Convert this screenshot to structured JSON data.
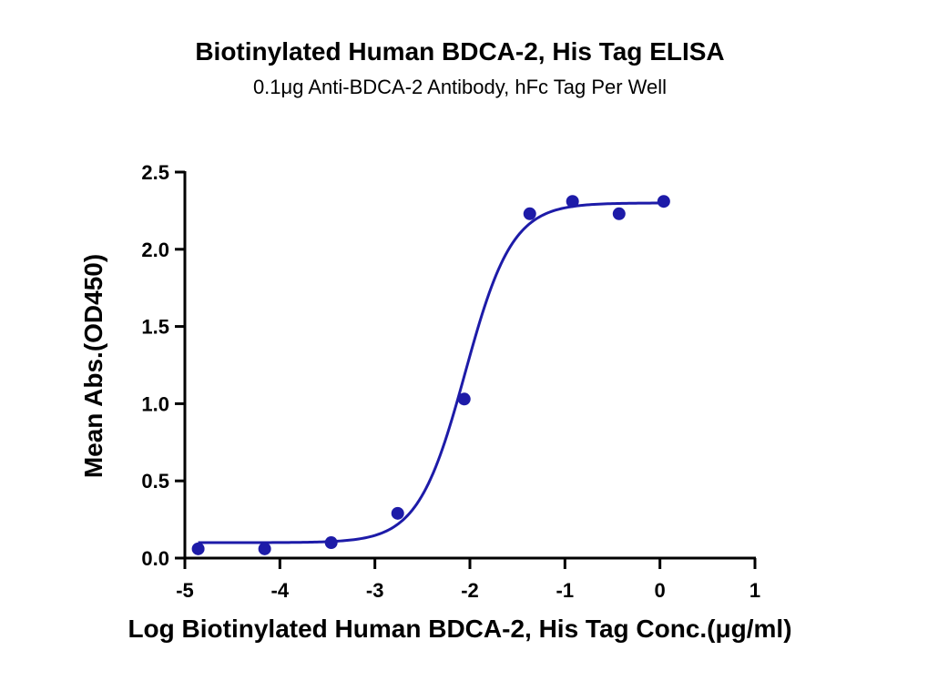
{
  "chart_data": {
    "type": "scatter",
    "title": "Biotinylated Human BDCA-2, His Tag ELISA",
    "subtitle": "0.1μg Anti-BDCA-2 Antibody, hFc Tag Per Well",
    "xlabel": "Log Biotinylated Human BDCA-2, His Tag Conc.(μg/ml)",
    "ylabel": "Mean Abs.(OD450)",
    "xlim": [
      -5,
      1
    ],
    "ylim": [
      0,
      2.5
    ],
    "xticks": [
      "-5",
      "-4",
      "-3",
      "-2",
      "-1",
      "0",
      "1"
    ],
    "yticks": [
      "0.0",
      "0.5",
      "1.0",
      "1.5",
      "2.0",
      "2.5"
    ],
    "grid": false,
    "legend": "none",
    "series": [
      {
        "x": [
          -4.86,
          -4.16,
          -3.46,
          -2.76,
          -2.06,
          -1.37,
          -0.92,
          -0.43,
          0.04
        ],
        "y": [
          0.06,
          0.06,
          0.1,
          0.29,
          1.03,
          2.23,
          2.31,
          2.23,
          2.31
        ],
        "fit": {
          "model": "four-parameter logistic",
          "bottom": 0.1,
          "top": 2.3,
          "logEC50": -2.05,
          "hillslope": 1.75
        }
      }
    ],
    "colors": {
      "series": "#1d1ba8",
      "axis": "#000000"
    }
  }
}
